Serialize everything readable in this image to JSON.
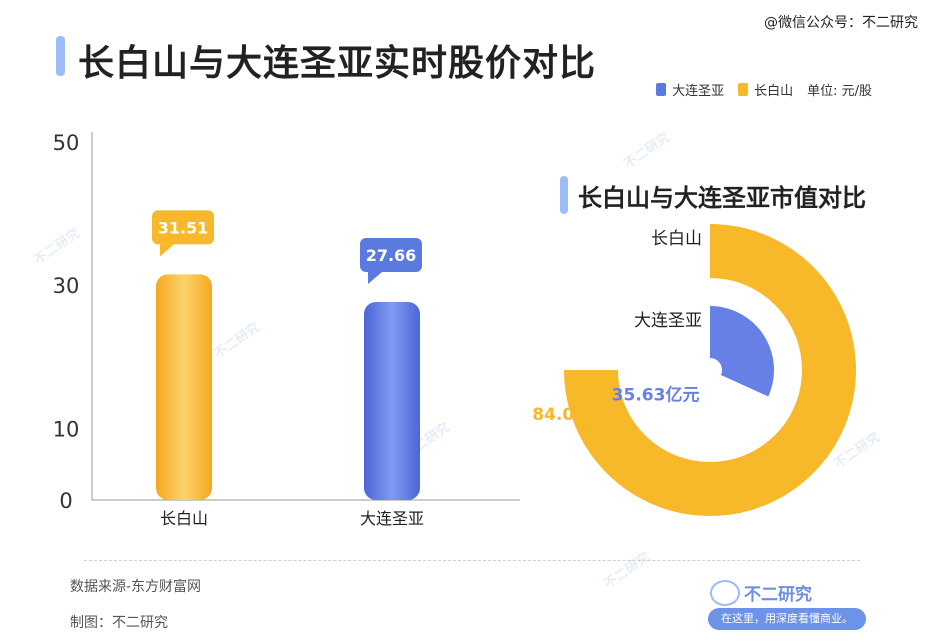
{
  "watermark_top": "@微信公众号：不二研究",
  "title": "长白山与大连圣亚实时股价对比",
  "legend": {
    "items": [
      {
        "label": "大连圣亚",
        "color": "#5b7ae0"
      },
      {
        "label": "长白山",
        "color": "#f7b82a"
      }
    ],
    "unit": "单位: 元/股"
  },
  "bar_chart": {
    "type": "bar",
    "categories": [
      "长白山",
      "大连圣亚"
    ],
    "values": [
      31.51,
      27.66
    ],
    "value_labels": [
      "31.51",
      "27.66"
    ],
    "colors": [
      "#f7b82a",
      "#5b7ae0"
    ],
    "yticks": [
      "0",
      "10",
      "30",
      "50"
    ],
    "ylim": [
      0,
      50
    ]
  },
  "market_cap": {
    "subtitle": "长白山与大连圣亚市值对比",
    "type": "pie",
    "items": [
      {
        "name": "长白山",
        "value": 84.03,
        "label": "84.03亿元",
        "color": "#f7b82a"
      },
      {
        "name": "大连圣亚",
        "value": 35.63,
        "label": "35.63亿元",
        "color": "#6680e5"
      }
    ]
  },
  "footer": {
    "source": "数据来源-东方财富网",
    "maker": "制图：不二研究"
  },
  "brand": {
    "name": "不二研究",
    "tagline": "在这里，用深度看懂商业。"
  },
  "watermark_text": "不二研究"
}
